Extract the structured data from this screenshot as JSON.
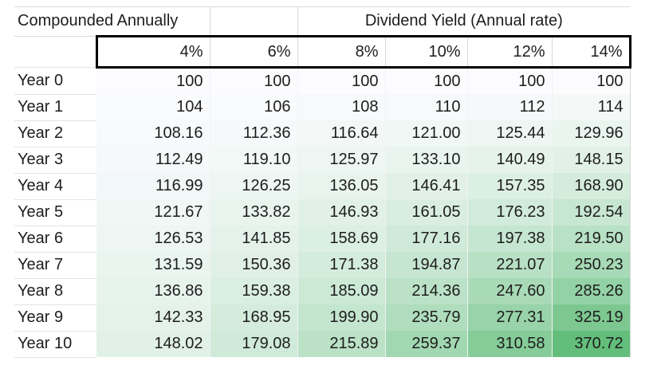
{
  "titles": {
    "left": "Compounded Annually",
    "right": "Dividend Yield (Annual rate)"
  },
  "table": {
    "col_headers": [
      "4%",
      "6%",
      "8%",
      "10%",
      "12%",
      "14%"
    ],
    "rows": [
      {
        "label": "Year 0",
        "values": [
          "100",
          "100",
          "100",
          "100",
          "100",
          "100"
        ]
      },
      {
        "label": "Year 1",
        "values": [
          "104",
          "106",
          "108",
          "110",
          "112",
          "114"
        ]
      },
      {
        "label": "Year 2",
        "values": [
          "108.16",
          "112.36",
          "116.64",
          "121.00",
          "125.44",
          "129.96"
        ]
      },
      {
        "label": "Year 3",
        "values": [
          "112.49",
          "119.10",
          "125.97",
          "133.10",
          "140.49",
          "148.15"
        ]
      },
      {
        "label": "Year 4",
        "values": [
          "116.99",
          "126.25",
          "136.05",
          "146.41",
          "157.35",
          "168.90"
        ]
      },
      {
        "label": "Year 5",
        "values": [
          "121.67",
          "133.82",
          "146.93",
          "161.05",
          "176.23",
          "192.54"
        ]
      },
      {
        "label": "Year 6",
        "values": [
          "126.53",
          "141.85",
          "158.69",
          "177.16",
          "197.38",
          "219.50"
        ]
      },
      {
        "label": "Year 7",
        "values": [
          "131.59",
          "150.36",
          "171.38",
          "194.87",
          "221.07",
          "250.23"
        ]
      },
      {
        "label": "Year 8",
        "values": [
          "136.86",
          "159.38",
          "185.09",
          "214.36",
          "247.60",
          "285.26"
        ]
      },
      {
        "label": "Year 9",
        "values": [
          "142.33",
          "168.95",
          "199.90",
          "235.79",
          "277.31",
          "325.19"
        ]
      },
      {
        "label": "Year 10",
        "values": [
          "148.02",
          "179.08",
          "215.89",
          "259.37",
          "310.58",
          "370.72"
        ]
      }
    ]
  },
  "color_scale": {
    "min_value": 100,
    "max_value": 370.72,
    "min_color": "#FCFCFF",
    "max_color": "#63BE7B"
  },
  "style": {
    "thick_border_color": "#000000",
    "gridline_color": "#D9D9D9",
    "text_color": "#1D1D1D"
  }
}
